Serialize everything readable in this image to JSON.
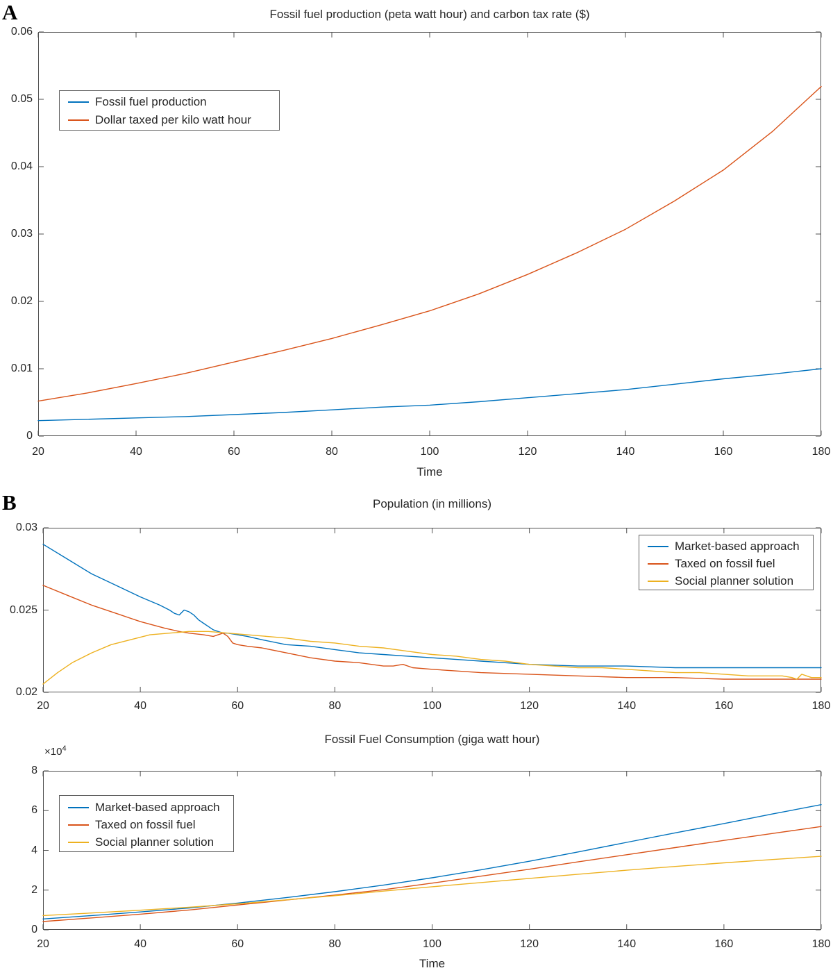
{
  "panel_labels": {
    "a": "A",
    "b": "B"
  },
  "colors": {
    "blue": "#0072BD",
    "red": "#D95319",
    "yellow": "#EDB120",
    "axis": "#4f4f4f",
    "text": "#262626"
  },
  "chart_data": [
    {
      "type": "line",
      "title": "Fossil fuel production (peta watt hour) and carbon tax rate ($)",
      "xlabel": "Time",
      "ylabel": "",
      "xlim": [
        20,
        180
      ],
      "ylim": [
        0,
        0.06
      ],
      "grid": false,
      "x_ticks": [
        20,
        40,
        60,
        80,
        100,
        120,
        140,
        160,
        180
      ],
      "x_tick_labels": [
        "20",
        "40",
        "60",
        "80",
        "100",
        "120",
        "140",
        "160",
        "180"
      ],
      "y_ticks": [
        0,
        0.01,
        0.02,
        0.03,
        0.04,
        0.05,
        0.06
      ],
      "y_tick_labels": [
        "0",
        "0.01",
        "0.02",
        "0.03",
        "0.04",
        "0.05",
        "0.06"
      ],
      "legend": {
        "position": "upper-left",
        "entries": [
          {
            "label": "Fossil fuel production",
            "color": "#0072BD"
          },
          {
            "label": "Dollar taxed per kilo watt hour",
            "color": "#D95319"
          }
        ]
      },
      "series": [
        {
          "name": "Fossil fuel production",
          "color": "#0072BD",
          "x": [
            20,
            30,
            40,
            50,
            60,
            70,
            80,
            90,
            100,
            110,
            120,
            130,
            140,
            150,
            160,
            170,
            180
          ],
          "y": [
            0.0023,
            0.0025,
            0.0027,
            0.0029,
            0.0032,
            0.0035,
            0.0039,
            0.0043,
            0.0046,
            0.0051,
            0.0057,
            0.0063,
            0.0069,
            0.0077,
            0.0085,
            0.0092,
            0.01
          ]
        },
        {
          "name": "Dollar taxed per kilo watt hour",
          "color": "#D95319",
          "x": [
            20,
            30,
            40,
            50,
            60,
            70,
            80,
            90,
            100,
            110,
            120,
            130,
            140,
            150,
            160,
            170,
            180
          ],
          "y": [
            0.0052,
            0.0064,
            0.0078,
            0.0093,
            0.011,
            0.0127,
            0.0145,
            0.0165,
            0.0186,
            0.0211,
            0.024,
            0.0272,
            0.0307,
            0.0349,
            0.0395,
            0.0452,
            0.0519
          ]
        }
      ]
    },
    {
      "type": "line",
      "title": "Population (in millions)",
      "xlabel": "",
      "ylabel": "",
      "xlim": [
        20,
        180
      ],
      "ylim": [
        0.02,
        0.03
      ],
      "grid": false,
      "x_ticks": [
        20,
        40,
        60,
        80,
        100,
        120,
        140,
        160,
        180
      ],
      "x_tick_labels": [
        "20",
        "40",
        "60",
        "80",
        "100",
        "120",
        "140",
        "160",
        "180"
      ],
      "y_ticks": [
        0.02,
        0.025,
        0.03
      ],
      "y_tick_labels": [
        "0.02",
        "0.025",
        "0.03"
      ],
      "legend": {
        "position": "upper-right",
        "entries": [
          {
            "label": "Market-based approach",
            "color": "#0072BD"
          },
          {
            "label": "Taxed on fossil fuel",
            "color": "#D95319"
          },
          {
            "label": "Social planner solution",
            "color": "#EDB120"
          }
        ]
      },
      "series": [
        {
          "name": "Market-based approach",
          "color": "#0072BD",
          "x": [
            20,
            25,
            30,
            35,
            40,
            44,
            46,
            47,
            48,
            49,
            50,
            51,
            52,
            53,
            54,
            55,
            56,
            57,
            58,
            60,
            62,
            65,
            70,
            75,
            80,
            85,
            90,
            95,
            100,
            105,
            110,
            115,
            120,
            130,
            140,
            150,
            160,
            170,
            180
          ],
          "y": [
            0.029,
            0.0281,
            0.0272,
            0.0265,
            0.0258,
            0.0253,
            0.025,
            0.0248,
            0.0247,
            0.025,
            0.0249,
            0.0247,
            0.0244,
            0.0242,
            0.024,
            0.0238,
            0.0237,
            0.0236,
            0.0236,
            0.0235,
            0.0234,
            0.0232,
            0.0229,
            0.0228,
            0.0226,
            0.0224,
            0.0223,
            0.0222,
            0.0221,
            0.022,
            0.0219,
            0.0218,
            0.0217,
            0.0216,
            0.0216,
            0.0215,
            0.0215,
            0.0215,
            0.0215
          ]
        },
        {
          "name": "Taxed on fossil fuel",
          "color": "#D95319",
          "x": [
            20,
            25,
            30,
            35,
            40,
            45,
            48,
            50,
            53,
            55,
            56,
            57,
            58,
            59,
            60,
            62,
            65,
            70,
            75,
            80,
            85,
            90,
            92,
            94,
            96,
            100,
            105,
            110,
            120,
            130,
            140,
            150,
            160,
            170,
            180
          ],
          "y": [
            0.0265,
            0.0259,
            0.0253,
            0.0248,
            0.0243,
            0.0239,
            0.0237,
            0.0236,
            0.0235,
            0.0234,
            0.0235,
            0.0236,
            0.0234,
            0.023,
            0.0229,
            0.0228,
            0.0227,
            0.0224,
            0.0221,
            0.0219,
            0.0218,
            0.0216,
            0.0216,
            0.0217,
            0.0215,
            0.0214,
            0.0213,
            0.0212,
            0.0211,
            0.021,
            0.0209,
            0.0209,
            0.0208,
            0.0208,
            0.0208
          ]
        },
        {
          "name": "Social planner solution",
          "color": "#EDB120",
          "x": [
            20,
            23,
            26,
            30,
            34,
            38,
            42,
            46,
            50,
            54,
            58,
            62,
            66,
            70,
            75,
            80,
            85,
            90,
            95,
            100,
            105,
            110,
            115,
            120,
            125,
            130,
            135,
            140,
            145,
            150,
            155,
            160,
            165,
            170,
            172,
            174,
            175,
            176,
            177,
            178,
            180
          ],
          "y": [
            0.0205,
            0.0212,
            0.0218,
            0.0224,
            0.0229,
            0.0232,
            0.0235,
            0.0236,
            0.0237,
            0.0237,
            0.0236,
            0.0235,
            0.0234,
            0.0233,
            0.0231,
            0.023,
            0.0228,
            0.0227,
            0.0225,
            0.0223,
            0.0222,
            0.022,
            0.0219,
            0.0217,
            0.0216,
            0.0215,
            0.0215,
            0.0214,
            0.0213,
            0.0212,
            0.0212,
            0.0211,
            0.021,
            0.021,
            0.021,
            0.0209,
            0.0208,
            0.0211,
            0.021,
            0.0209,
            0.0209
          ]
        }
      ]
    },
    {
      "type": "line",
      "title": "Fossil Fuel Consumption (giga watt hour)",
      "xlabel": "Time",
      "ylabel": "",
      "y_axis_multiplier": {
        "base": "×10",
        "exp": "4"
      },
      "xlim": [
        20,
        180
      ],
      "ylim": [
        0,
        8
      ],
      "grid": false,
      "x_ticks": [
        20,
        40,
        60,
        80,
        100,
        120,
        140,
        160,
        180
      ],
      "x_tick_labels": [
        "20",
        "40",
        "60",
        "80",
        "100",
        "120",
        "140",
        "160",
        "180"
      ],
      "y_ticks": [
        0,
        2,
        4,
        6,
        8
      ],
      "y_tick_labels": [
        "0",
        "2",
        "4",
        "6",
        "8"
      ],
      "legend": {
        "position": "upper-left",
        "entries": [
          {
            "label": "Market-based approach",
            "color": "#0072BD"
          },
          {
            "label": "Taxed on fossil fuel",
            "color": "#D95319"
          },
          {
            "label": "Social planner solution",
            "color": "#EDB120"
          }
        ]
      },
      "series": [
        {
          "name": "Market-based approach",
          "color": "#0072BD",
          "x": [
            20,
            30,
            40,
            50,
            60,
            70,
            80,
            90,
            100,
            110,
            120,
            130,
            140,
            150,
            160,
            170,
            180
          ],
          "y": [
            0.55,
            0.72,
            0.9,
            1.1,
            1.35,
            1.62,
            1.92,
            2.25,
            2.62,
            3.02,
            3.45,
            3.92,
            4.4,
            4.88,
            5.35,
            5.83,
            6.3
          ]
        },
        {
          "name": "Taxed on fossil fuel",
          "color": "#D95319",
          "x": [
            20,
            30,
            40,
            50,
            60,
            70,
            80,
            90,
            100,
            110,
            120,
            130,
            140,
            150,
            160,
            170,
            180
          ],
          "y": [
            0.42,
            0.6,
            0.79,
            1.0,
            1.25,
            1.5,
            1.75,
            2.02,
            2.35,
            2.7,
            3.05,
            3.42,
            3.78,
            4.14,
            4.5,
            4.85,
            5.2
          ]
        },
        {
          "name": "Social planner solution",
          "color": "#EDB120",
          "x": [
            20,
            30,
            40,
            50,
            60,
            70,
            80,
            90,
            100,
            110,
            120,
            130,
            140,
            150,
            160,
            170,
            180
          ],
          "y": [
            0.72,
            0.85,
            0.99,
            1.14,
            1.31,
            1.51,
            1.72,
            1.95,
            2.17,
            2.38,
            2.59,
            2.8,
            3.0,
            3.19,
            3.37,
            3.54,
            3.7
          ]
        }
      ]
    }
  ]
}
